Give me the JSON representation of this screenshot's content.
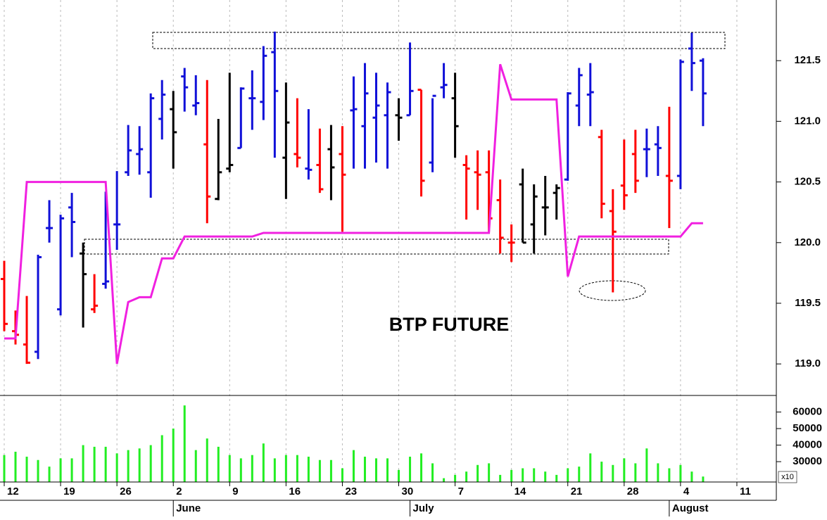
{
  "chart_data": [
    {
      "type": "ohlc",
      "title": "BTP FUTURE",
      "colors": [
        "#ff0000",
        "#ff0000",
        "#ff0000",
        "#1010d8",
        "#1010d8",
        "#1010d8",
        "#1010d8",
        "#000000",
        "#ff0000",
        "#1010d8",
        "#1010d8",
        "#1010d8",
        "#1010d8",
        "#1010d8",
        "#1010d8",
        "#000000",
        "#1010d8",
        "#1010d8",
        "#ff0000",
        "#000000",
        "#000000",
        "#1010d8",
        "#1010d8",
        "#1010d8",
        "#1010d8",
        "#000000",
        "#ff0000",
        "#1010d8",
        "#ff0000",
        "#000000",
        "#ff0000",
        "#1010d8",
        "#1010d8",
        "#1010d8",
        "#1010d8",
        "#000000",
        "#1010d8",
        "#ff0000",
        "#1010d8",
        "#1010d8",
        "#000000",
        "#ff0000",
        "#ff0000",
        "#ff0000",
        "#ff0000",
        "#ff0000",
        "#000000",
        "#000000",
        "#000000",
        "#000000",
        "#1010d8",
        "#1010d8",
        "#1010d8",
        "#ff0000",
        "#ff0000",
        "#ff0000",
        "#ff0000",
        "#1010d8",
        "#1010d8",
        "#ff0000",
        "#1010d8",
        "#1010d8",
        "#1010d8"
      ],
      "open": [
        119.7,
        119.27,
        119.16,
        119.1,
        120.12,
        119.45,
        120.29,
        119.91,
        119.45,
        119.66,
        120.15,
        120.58,
        120.73,
        120.58,
        121.02,
        121.1,
        121.37,
        121.13,
        120.81,
        120.36,
        120.61,
        120.78,
        121.19,
        121.16,
        121.57,
        120.7,
        120.73,
        120.61,
        120.64,
        120.77,
        120.73,
        121.09,
        120.96,
        121.03,
        121.05,
        121.05,
        121.05,
        121.26,
        120.66,
        121.28,
        121.19,
        120.64,
        120.58,
        120.58,
        120.35,
        120.0,
        120.48,
        120.15,
        120.29,
        120.41,
        120.52,
        121.13,
        121.22,
        120.87,
        120.26,
        120.47,
        120.73,
        120.77,
        120.81,
        120.55,
        120.55,
        121.6,
        121.5
      ],
      "high": [
        119.85,
        119.44,
        119.56,
        119.9,
        120.35,
        120.23,
        120.41,
        120.0,
        119.74,
        120.42,
        120.59,
        120.97,
        120.96,
        121.23,
        121.34,
        121.25,
        121.44,
        121.38,
        121.34,
        121.02,
        121.4,
        121.28,
        121.42,
        121.62,
        121.74,
        121.32,
        121.19,
        121.1,
        120.94,
        120.97,
        120.96,
        121.37,
        121.48,
        121.4,
        121.32,
        121.19,
        121.65,
        121.26,
        121.19,
        121.48,
        121.4,
        120.72,
        120.76,
        120.76,
        120.52,
        120.15,
        120.61,
        120.48,
        120.55,
        120.48,
        121.24,
        121.44,
        121.48,
        120.93,
        120.44,
        120.85,
        120.93,
        120.94,
        120.96,
        121.12,
        121.51,
        121.73,
        121.52
      ],
      "low": [
        119.27,
        119.16,
        119.0,
        119.04,
        120.0,
        119.4,
        119.88,
        119.3,
        119.42,
        119.62,
        119.94,
        120.55,
        120.56,
        120.37,
        120.85,
        120.61,
        121.08,
        121.05,
        120.16,
        120.35,
        120.58,
        120.78,
        120.93,
        121.01,
        120.7,
        120.36,
        120.62,
        120.52,
        120.41,
        120.35,
        120.09,
        120.61,
        120.61,
        120.66,
        120.61,
        120.84,
        121.05,
        120.38,
        120.58,
        121.19,
        120.7,
        120.19,
        120.27,
        120.09,
        119.91,
        119.84,
        120.0,
        119.91,
        120.06,
        120.19,
        120.51,
        120.96,
        120.96,
        120.2,
        119.59,
        120.27,
        120.41,
        120.54,
        120.55,
        120.12,
        120.44,
        121.25,
        120.96
      ],
      "close": [
        119.33,
        119.24,
        119.01,
        119.88,
        120.12,
        120.2,
        120.17,
        119.74,
        119.48,
        119.68,
        120.15,
        120.76,
        120.77,
        121.19,
        121.22,
        120.91,
        121.28,
        121.15,
        120.38,
        120.58,
        120.64,
        121.27,
        121.19,
        121.54,
        121.25,
        120.99,
        120.7,
        120.6,
        120.44,
        120.62,
        120.56,
        121.1,
        121.23,
        121.13,
        121.24,
        121.03,
        121.25,
        120.51,
        121.21,
        121.3,
        120.96,
        120.61,
        120.56,
        120.2,
        120.04,
        120.0,
        120.0,
        120.38,
        120.29,
        120.45,
        121.23,
        121.38,
        121.24,
        120.32,
        120.09,
        120.39,
        120.51,
        120.77,
        120.78,
        120.51,
        121.49,
        121.48,
        121.23
      ],
      "line": {
        "color": "#f020e0",
        "values": [
          119.21,
          119.21,
          120.5,
          120.5,
          120.5,
          120.5,
          120.5,
          120.5,
          120.5,
          120.5,
          119.0,
          119.51,
          119.55,
          119.55,
          119.87,
          119.87,
          120.05,
          120.05,
          120.05,
          120.05,
          120.05,
          120.05,
          120.05,
          120.08,
          120.08,
          120.08,
          120.08,
          120.08,
          120.08,
          120.08,
          120.08,
          120.08,
          120.08,
          120.08,
          120.08,
          120.08,
          120.08,
          120.08,
          120.08,
          120.08,
          120.08,
          120.08,
          120.08,
          120.08,
          121.47,
          121.18,
          121.18,
          121.18,
          121.18,
          121.18,
          119.72,
          120.05,
          120.05,
          120.05,
          120.05,
          120.05,
          120.05,
          120.05,
          120.05,
          120.05,
          120.05,
          120.16,
          120.16
        ]
      },
      "ylim": [
        118.74,
        122.0
      ],
      "yticks": [
        {
          "value": 119,
          "label": "119.0"
        },
        119.5,
        {
          "value": 120,
          "label": "120.0"
        },
        120.5,
        {
          "value": 121,
          "label": "121.0"
        },
        121.5
      ],
      "xlim": [
        -0.375,
        68.5
      ],
      "xticks": [
        {
          "value": 0,
          "label": "12"
        },
        {
          "value": 5,
          "label": "19"
        },
        {
          "value": 10,
          "label": "26"
        },
        {
          "value": 15,
          "label": "2"
        },
        {
          "value": 20,
          "label": "9"
        },
        {
          "value": 25,
          "label": "16"
        },
        {
          "value": 30,
          "label": "23"
        },
        {
          "value": 35,
          "label": "30"
        },
        {
          "value": 40,
          "label": "7"
        },
        {
          "value": 45,
          "label": "14"
        },
        {
          "value": 50,
          "label": "21"
        },
        {
          "value": 55,
          "label": "28"
        },
        {
          "value": 60,
          "label": "4"
        },
        {
          "value": 65,
          "label": "11"
        }
      ],
      "month_ticks": [
        {
          "value": 15,
          "label": "June"
        },
        {
          "value": 36,
          "label": "July"
        },
        {
          "value": 59,
          "label": "August"
        }
      ]
    },
    {
      "type": "bar",
      "color": "#22ee22",
      "multiplier_label": "x10",
      "values": [
        34000,
        36000,
        33000,
        31000,
        27000,
        32000,
        32000,
        40000,
        39000,
        39000,
        35000,
        37000,
        38000,
        40000,
        46000,
        50000,
        64000,
        37000,
        44000,
        39000,
        34000,
        32000,
        34000,
        41000,
        32000,
        34000,
        34000,
        33000,
        31000,
        31000,
        26000,
        37000,
        33000,
        32000,
        32000,
        25000,
        33000,
        35000,
        29000,
        20000,
        22000,
        24000,
        28000,
        29000,
        22000,
        25000,
        26000,
        26000,
        24000,
        22000,
        26000,
        27000,
        35000,
        30000,
        28000,
        32000,
        29000,
        38000,
        29000,
        26000,
        28000,
        24000,
        21000
      ],
      "ylim": [
        17700,
        69600
      ],
      "yticks": [
        30000,
        40000,
        50000,
        60000
      ]
    }
  ]
}
